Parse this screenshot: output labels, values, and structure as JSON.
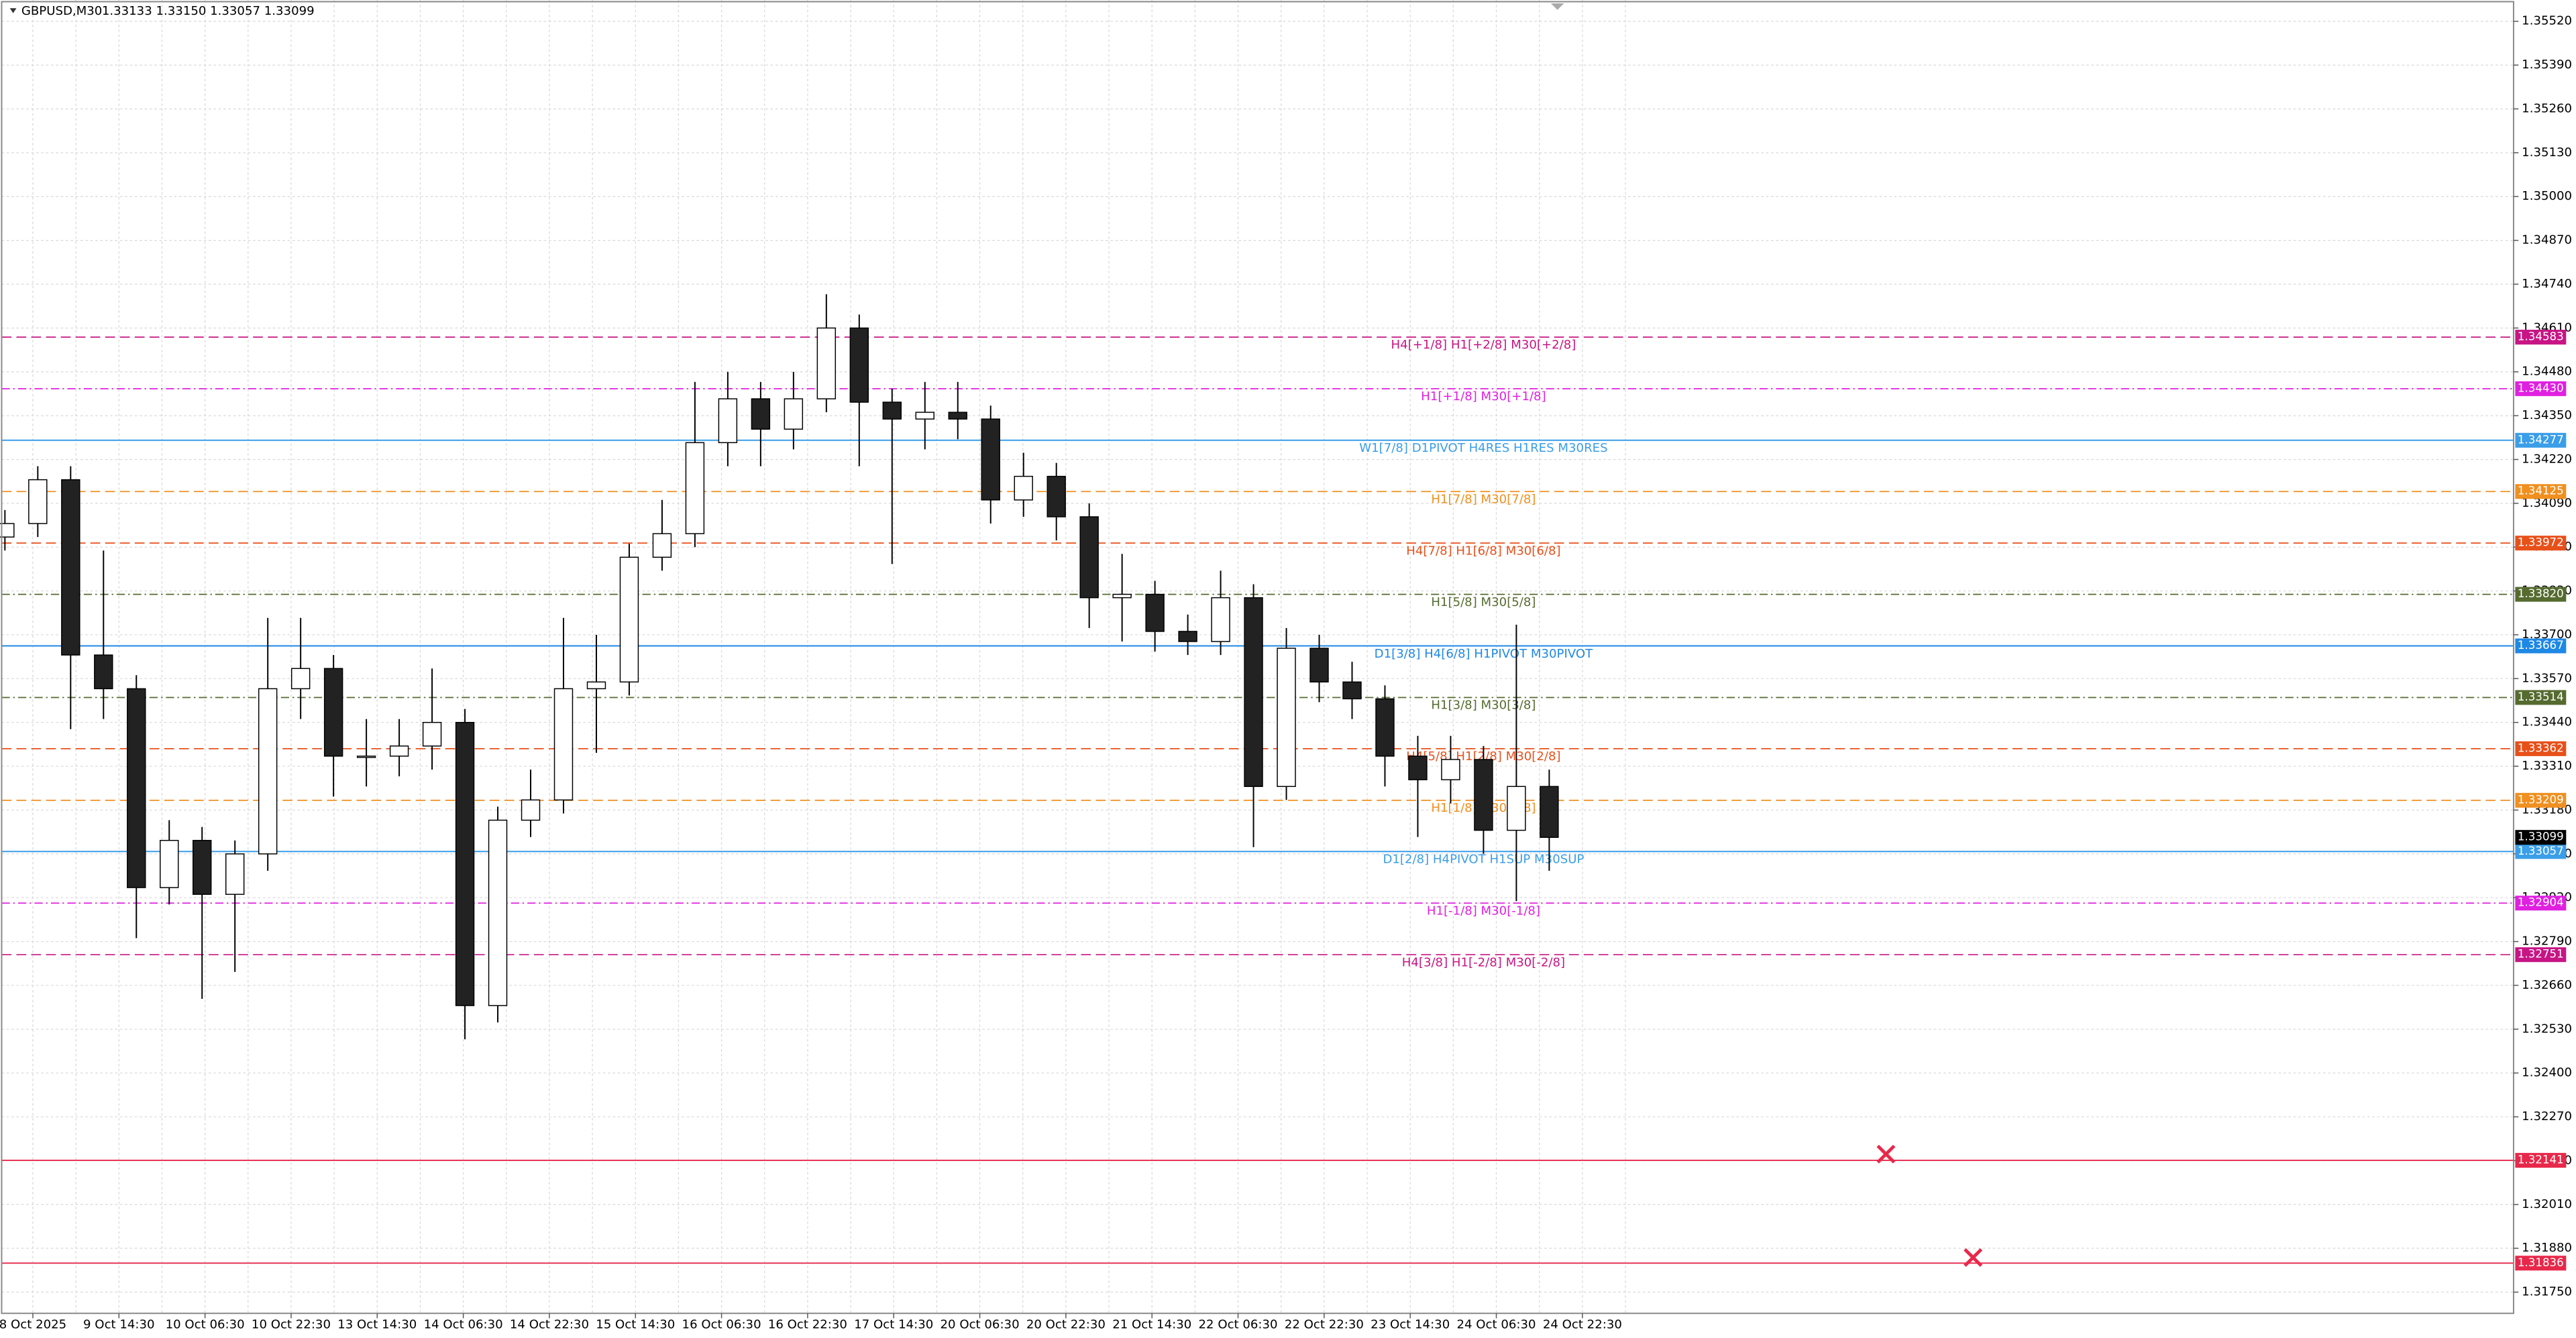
{
  "chart_data": {
    "type": "candlestick",
    "title": "GBPUSD,M30",
    "quote": "1.33133 1.33150 1.33057 1.33099",
    "ylim": [
      1.31687,
      1.35583
    ],
    "yticks": [
      {
        "value": 1.3552,
        "label": "1.35520"
      },
      {
        "value": 1.3539,
        "label": "1.35390"
      },
      {
        "value": 1.3526,
        "label": "1.35260"
      },
      {
        "value": 1.3513,
        "label": "1.35130"
      },
      {
        "value": 1.35,
        "label": "1.35000"
      },
      {
        "value": 1.3487,
        "label": "1.34870"
      },
      {
        "value": 1.3474,
        "label": "1.34740"
      },
      {
        "value": 1.3461,
        "label": "1.34610"
      },
      {
        "value": 1.3448,
        "label": "1.34480"
      },
      {
        "value": 1.3435,
        "label": "1.34350"
      },
      {
        "value": 1.3422,
        "label": "1.34220"
      },
      {
        "value": 1.3409,
        "label": "1.34090"
      },
      {
        "value": 1.3396,
        "label": "1.33960"
      },
      {
        "value": 1.3383,
        "label": "1.33830"
      },
      {
        "value": 1.337,
        "label": "1.33700"
      },
      {
        "value": 1.3357,
        "label": "1.33570"
      },
      {
        "value": 1.3344,
        "label": "1.33440"
      },
      {
        "value": 1.3331,
        "label": "1.33310"
      },
      {
        "value": 1.3318,
        "label": "1.33180"
      },
      {
        "value": 1.3305,
        "label": "1.33050"
      },
      {
        "value": 1.3292,
        "label": "1.32920"
      },
      {
        "value": 1.3279,
        "label": "1.32790"
      },
      {
        "value": 1.3266,
        "label": "1.32660"
      },
      {
        "value": 1.3253,
        "label": "1.32530"
      },
      {
        "value": 1.324,
        "label": "1.32400"
      },
      {
        "value": 1.3227,
        "label": "1.32270"
      },
      {
        "value": 1.3214,
        "label": "1.32140"
      },
      {
        "value": 1.3201,
        "label": "1.32010"
      },
      {
        "value": 1.3188,
        "label": "1.31880"
      },
      {
        "value": 1.3175,
        "label": "1.31750"
      }
    ],
    "x_labels": [
      "8 Oct 2025",
      "9 Oct 14:30",
      "10 Oct 06:30",
      "10 Oct 22:30",
      "13 Oct 14:30",
      "14 Oct 06:30",
      "14 Oct 22:30",
      "15 Oct 14:30",
      "16 Oct 06:30",
      "16 Oct 22:30",
      "17 Oct 14:30",
      "20 Oct 06:30",
      "20 Oct 22:30",
      "21 Oct 14:30",
      "22 Oct 06:30",
      "22 Oct 22:30",
      "23 Oct 14:30",
      "24 Oct 06:30",
      "24 Oct 22:30"
    ],
    "grid": true,
    "open": [
      1.3399,
      1.3403,
      1.3416,
      1.3364,
      1.3354,
      1.3295,
      1.3309,
      1.3293,
      1.3305,
      1.3354,
      1.336,
      1.3334,
      1.3334,
      1.3337,
      1.3344,
      1.326,
      1.3315,
      1.3321,
      1.3354,
      1.3356,
      1.3393,
      1.34,
      1.3427,
      1.344,
      1.3431,
      1.344,
      1.3461,
      1.3439,
      1.3434,
      1.3436,
      1.3434,
      1.341,
      1.3417,
      1.3405,
      1.3381,
      1.3382,
      1.3371,
      1.3368,
      1.3381,
      1.3325,
      1.3366,
      1.3356,
      1.3351,
      1.3334,
      1.3327,
      1.3333,
      1.3312,
      1.3325
    ],
    "high": [
      1.3407,
      1.342,
      1.342,
      1.3395,
      1.3358,
      1.3315,
      1.3313,
      1.3309,
      1.3375,
      1.3375,
      1.3364,
      1.3345,
      1.3345,
      1.336,
      1.3348,
      1.3319,
      1.333,
      1.3375,
      1.337,
      1.3397,
      1.341,
      1.3445,
      1.3448,
      1.3445,
      1.3448,
      1.3471,
      1.3465,
      1.3443,
      1.3445,
      1.3445,
      1.3438,
      1.3424,
      1.3421,
      1.3409,
      1.3394,
      1.3386,
      1.3376,
      1.3389,
      1.3385,
      1.3372,
      1.337,
      1.3362,
      1.3355,
      1.334,
      1.334,
      1.3337,
      1.3373,
      1.333
    ],
    "low": [
      1.3395,
      1.3399,
      1.3342,
      1.3345,
      1.328,
      1.329,
      1.3262,
      1.327,
      1.33,
      1.3345,
      1.3322,
      1.3325,
      1.3328,
      1.333,
      1.325,
      1.3255,
      1.331,
      1.3317,
      1.3335,
      1.3352,
      1.3389,
      1.3396,
      1.342,
      1.342,
      1.3425,
      1.3436,
      1.342,
      1.3391,
      1.3425,
      1.3428,
      1.3403,
      1.3405,
      1.3398,
      1.3372,
      1.3368,
      1.3365,
      1.3364,
      1.3364,
      1.3307,
      1.3321,
      1.335,
      1.3345,
      1.3325,
      1.331,
      1.332,
      1.3305,
      1.3291,
      1.33
    ],
    "close": [
      1.3403,
      1.3416,
      1.3364,
      1.3354,
      1.3295,
      1.3309,
      1.3293,
      1.3305,
      1.3354,
      1.336,
      1.3334,
      1.3334,
      1.3337,
      1.3344,
      1.326,
      1.3315,
      1.3321,
      1.3354,
      1.3356,
      1.3393,
      1.34,
      1.3427,
      1.344,
      1.3431,
      1.344,
      1.3461,
      1.3439,
      1.3434,
      1.3436,
      1.3434,
      1.341,
      1.3417,
      1.3405,
      1.3381,
      1.3382,
      1.3371,
      1.3368,
      1.3381,
      1.3325,
      1.3366,
      1.3356,
      1.3351,
      1.3334,
      1.3327,
      1.3333,
      1.3312,
      1.3325,
      1.33099
    ],
    "levels": [
      {
        "value": 1.34583,
        "label": "H4[+1/8] H1[+2/8] M30[+2/8]",
        "color": "#c71585",
        "style": "dash"
      },
      {
        "value": 1.3443,
        "label": "H1[+1/8] M30[+1/8]",
        "color": "#e020e0",
        "style": "dashdot",
        "tag": "1.34430"
      },
      {
        "value": 1.34277,
        "label": "W1[7/8] D1PIVOT H4RES H1RES M30RES",
        "color": "#3a9ee8",
        "style": "solid"
      },
      {
        "value": 1.34125,
        "label": "H1[7/8] M30[7/8]",
        "color": "#f09020",
        "style": "dash"
      },
      {
        "value": 1.33972,
        "label": "H4[7/8] H1[6/8] M30[6/8]",
        "color": "#e8501a",
        "style": "dash"
      },
      {
        "value": 1.3382,
        "label": "H1[5/8] M30[5/8]",
        "color": "#556b2f",
        "style": "dashdot",
        "tag": "1.33820"
      },
      {
        "value": 1.33667,
        "label": "D1[3/8] H4[6/8] H1PIVOT M30PIVOT",
        "color": "#1e88e5",
        "style": "solid"
      },
      {
        "value": 1.33514,
        "label": "H1[3/8] M30[3/8]",
        "color": "#556b2f",
        "style": "dashdot"
      },
      {
        "value": 1.33362,
        "label": "H4[5/8] H1[2/8] M30[2/8]",
        "color": "#e8501a",
        "style": "dash"
      },
      {
        "value": 1.33209,
        "label": "H1[1/8] M30[1/8]",
        "color": "#f09020",
        "style": "dash"
      },
      {
        "value": 1.33057,
        "label": "D1[2/8] H4PIVOT H1SUP M30SUP",
        "color": "#3a9ee8",
        "style": "solid"
      },
      {
        "value": 1.32904,
        "label": "H1[-1/8] M30[-1/8]",
        "color": "#e020e0",
        "style": "dashdot"
      },
      {
        "value": 1.32751,
        "label": "H4[3/8] H1[-2/8] M30[-2/8]",
        "color": "#c71585",
        "style": "dash"
      },
      {
        "value": 1.32141,
        "color": "#e8284a",
        "style": "solid"
      },
      {
        "value": 1.31836,
        "color": "#e8284a",
        "style": "solid"
      }
    ]
  }
}
